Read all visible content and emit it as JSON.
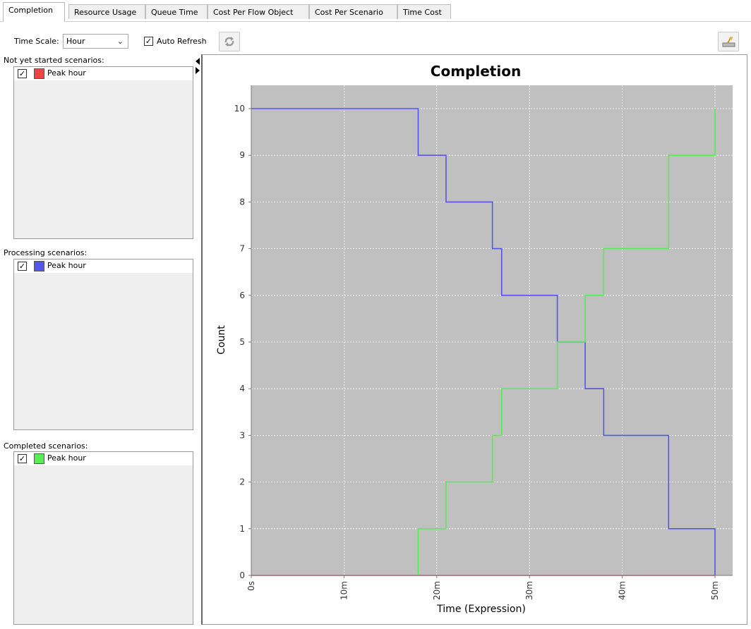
{
  "tabs": [
    {
      "label": "Completion",
      "active": true
    },
    {
      "label": "Resource Usage",
      "active": false
    },
    {
      "label": "Queue Time",
      "active": false
    },
    {
      "label": "Cost Per Flow Object",
      "active": false
    },
    {
      "label": "Cost Per Scenario",
      "active": false
    },
    {
      "label": "Time Cost",
      "active": false
    }
  ],
  "toolbar": {
    "time_scale_label": "Time Scale:",
    "time_scale_value": "Hour",
    "auto_refresh_label": "Auto Refresh",
    "auto_refresh_checked": true,
    "refresh_icon": "refresh-arrows-icon",
    "export_icon": "export-chart-icon"
  },
  "panels": {
    "not_started": {
      "label": "Not yet started scenarios:",
      "items": [
        {
          "name": "Peak hour",
          "checked": true,
          "color": "#ee4444"
        }
      ]
    },
    "processing": {
      "label": "Processing scenarios:",
      "items": [
        {
          "name": "Peak hour",
          "checked": true,
          "color": "#5555ee"
        }
      ]
    },
    "completed": {
      "label": "Completed scenarios:",
      "items": [
        {
          "name": "Peak hour",
          "checked": true,
          "color": "#55ee55"
        }
      ]
    }
  },
  "chart_data": {
    "type": "line",
    "step": true,
    "title": "Completion",
    "xlabel": "Time (Expression)",
    "ylabel": "Count",
    "xlim": [
      0,
      50
    ],
    "ylim": [
      0,
      10
    ],
    "xticks": [
      0,
      10,
      20,
      30,
      40,
      50
    ],
    "xtick_labels": [
      "0s",
      "10m",
      "20m",
      "30m",
      "40m",
      "50m"
    ],
    "yticks": [
      0,
      1,
      2,
      3,
      4,
      5,
      6,
      7,
      8,
      9,
      10
    ],
    "ytick_labels": [
      "0",
      "1",
      "2",
      "3",
      "4",
      "5",
      "6",
      "7",
      "8",
      "9",
      "10"
    ],
    "grid": true,
    "background": "#c0c0c0",
    "series": [
      {
        "color": "#ee4444",
        "x": [
          0,
          50
        ],
        "y": [
          0,
          0
        ]
      },
      {
        "color": "#5555ee",
        "x": [
          0,
          18,
          21,
          26,
          27,
          33,
          36,
          38,
          45,
          50
        ],
        "y": [
          10,
          9,
          8,
          7,
          6,
          5,
          4,
          3,
          1,
          0
        ]
      },
      {
        "color": "#55ee55",
        "x": [
          18,
          21,
          26,
          27,
          33,
          36,
          38,
          45,
          50
        ],
        "y": [
          1,
          2,
          3,
          4,
          5,
          6,
          7,
          9,
          10
        ]
      }
    ]
  }
}
